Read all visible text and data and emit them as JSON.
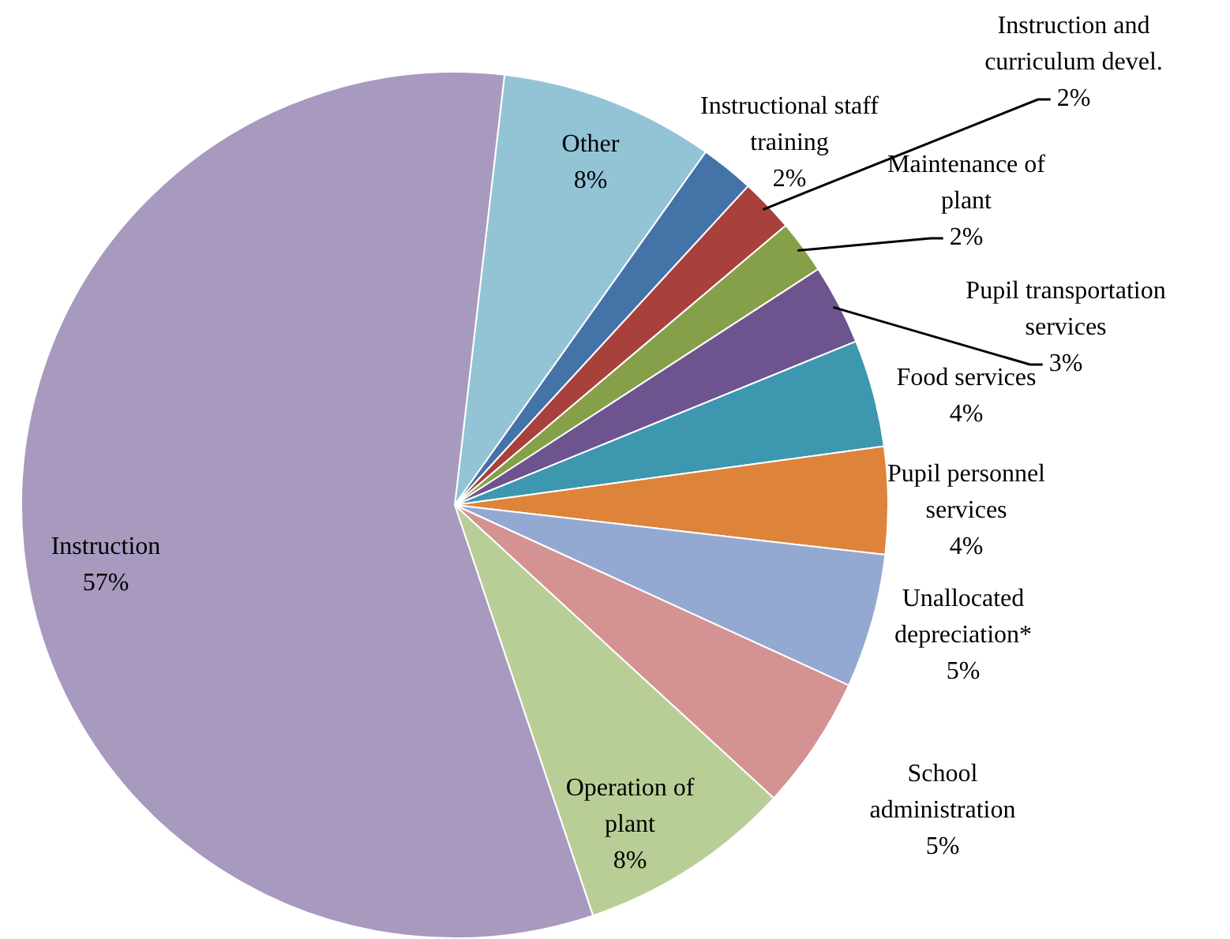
{
  "chart_data": {
    "type": "pie",
    "categories": [
      "Other",
      "Instructional staff training",
      "Instruction and curriculum devel.",
      "Maintenance of plant",
      "Pupil transportation services",
      "Food services",
      "Pupil personnel services",
      "Unallocated depreciation*",
      "School administration",
      "Operation of plant",
      "Instruction"
    ],
    "values": [
      8,
      2,
      2,
      2,
      3,
      4,
      4,
      5,
      5,
      8,
      57
    ],
    "value_labels": [
      "8%",
      "2%",
      "2%",
      "2%",
      "3%",
      "4%",
      "4%",
      "5%",
      "5%",
      "8%",
      "57%"
    ],
    "colors": [
      "#93c4d6",
      "#4473a8",
      "#a8403c",
      "#86a04a",
      "#6e548f",
      "#3d97ae",
      "#dd843a",
      "#94a9d2",
      "#d49392",
      "#b9ce96",
      "#a899bf"
    ],
    "legend": false
  }
}
